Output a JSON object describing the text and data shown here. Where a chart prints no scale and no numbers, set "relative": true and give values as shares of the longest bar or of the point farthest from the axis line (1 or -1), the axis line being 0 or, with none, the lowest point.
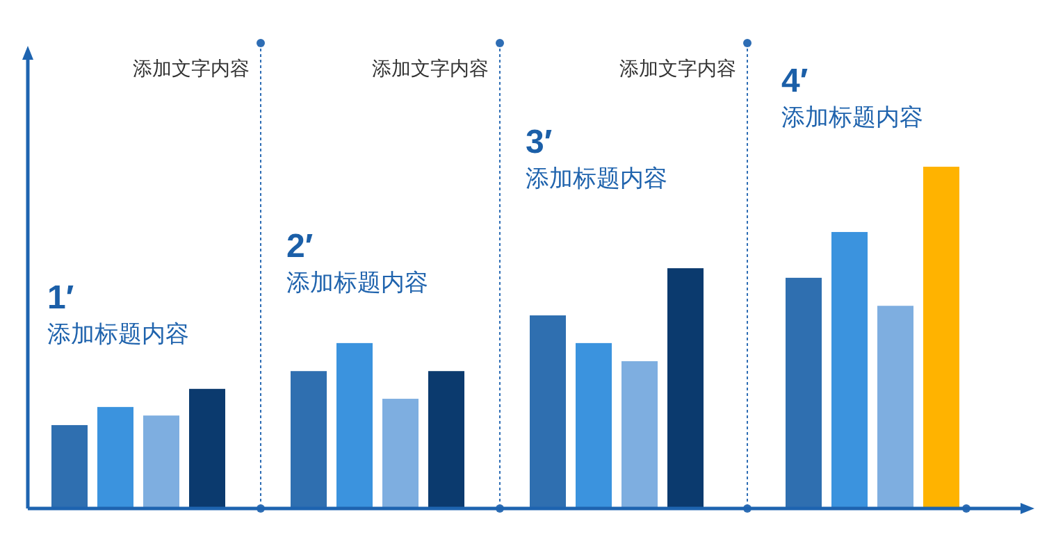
{
  "chart_data": {
    "type": "bar",
    "relative": true,
    "categories": [
      null,
      null,
      null,
      null
    ],
    "series": [
      {
        "color": "#2f6fb0",
        "values": [
          0.244,
          0.402,
          0.565,
          0.675
        ]
      },
      {
        "color": "#3b93de",
        "values": [
          0.297,
          0.484,
          0.484,
          0.809
        ]
      },
      {
        "color": "#7eaee0",
        "values": [
          0.272,
          0.321,
          0.431,
          0.593
        ]
      },
      {
        "color": "#0b3a6e",
        "colors": [
          null,
          null,
          null,
          "#ffb300"
        ],
        "values": [
          0.35,
          0.402,
          0.703,
          1
        ]
      }
    ],
    "annotations": [
      "1′",
      "添加标题内容",
      "2′",
      "添加标题内容",
      "3′",
      "添加标题内容",
      "4′",
      "添加标题内容",
      "添加文字内容",
      "添加文字内容",
      "添加文字内容"
    ]
  }
}
